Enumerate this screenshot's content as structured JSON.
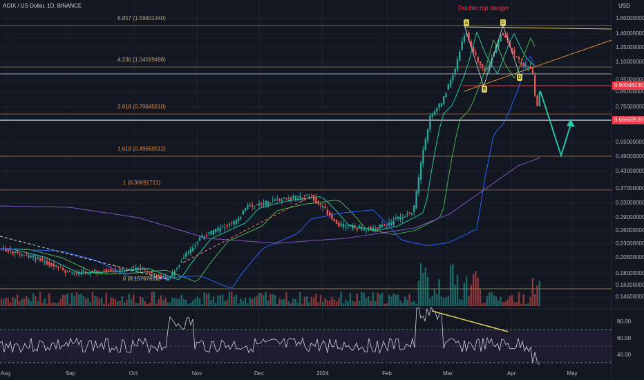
{
  "header": {
    "symbol": "AGIX / US Dollar, 1D, BINANCE",
    "currency": "USD"
  },
  "annotation": "Double top danger",
  "fib_levels": [
    "6.857 (1.59601440)",
    "4.236 (1.04599498)",
    "2.618 (0.70645610)",
    "1.618 (0.49660512)",
    "1 (0.36691721)",
    "0 (0.15767625)"
  ],
  "pattern_points": [
    "A",
    "B",
    "C",
    "D"
  ],
  "price_axis": [
    "1.60000000",
    "1.40000000",
    "1.25000000",
    "1.10000000",
    "0.95000000",
    "0.85000000",
    "0.75000000",
    "0.55000000",
    "0.49000000",
    "0.43000000",
    "0.37000000",
    "0.33000000",
    "0.29000000",
    "0.26000000",
    "0.23000000",
    "0.20500000",
    "0.18000000",
    "0.16200000",
    "0.14600000"
  ],
  "price_badges": [
    "0.90046130",
    "0.66659539"
  ],
  "rsi_axis": [
    "80.00",
    "60.00",
    "40.00"
  ],
  "time_axis": [
    "Aug",
    "Sep",
    "Oct",
    "Nov",
    "Dec",
    "2024",
    "Feb",
    "Mar",
    "Apr",
    "May"
  ]
}
